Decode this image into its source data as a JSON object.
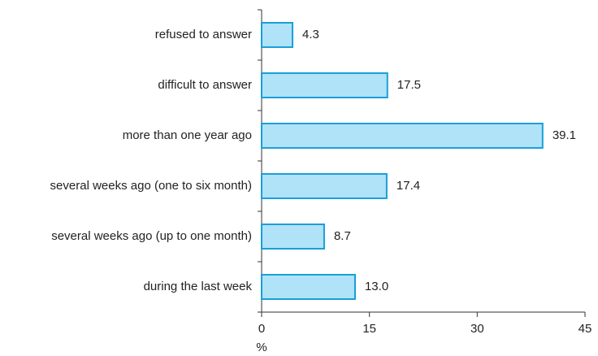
{
  "chart_data": {
    "type": "bar",
    "orientation": "horizontal",
    "categories": [
      "refused to answer",
      "difficult to answer",
      "more than one year ago",
      "several weeks ago (one to six month)",
      "several weeks ago (up to one month)",
      "during the last week"
    ],
    "values": [
      4.3,
      17.5,
      39.1,
      17.4,
      8.7,
      13.0
    ],
    "value_labels": [
      "4.3",
      "17.5",
      "39.1",
      "17.4",
      "8.7",
      "13.0"
    ],
    "color": "#b0e2f8",
    "edge_color": "#1a9fd8",
    "xlim": [
      0,
      45
    ],
    "xticks": [
      0,
      15,
      30,
      45
    ],
    "x_label": "%",
    "grid": false
  }
}
